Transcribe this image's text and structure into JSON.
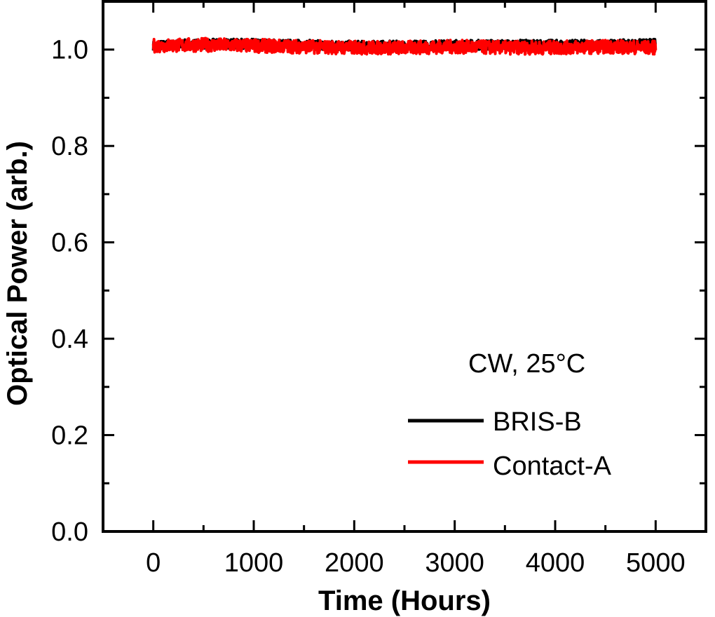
{
  "chart_data": {
    "type": "line",
    "xlabel": "Time (Hours)",
    "ylabel": "Optical Power (arb.)",
    "xlim": [
      -500,
      5500
    ],
    "ylim": [
      0.0,
      1.1
    ],
    "x_ticks": [
      0,
      1000,
      2000,
      3000,
      4000,
      5000
    ],
    "x_tick_labels": [
      "0",
      "1000",
      "2000",
      "3000",
      "4000",
      "5000"
    ],
    "y_ticks": [
      0.0,
      0.2,
      0.4,
      0.6,
      0.8,
      1.0
    ],
    "y_tick_labels": [
      "0.0",
      "0.2",
      "0.4",
      "0.6",
      "0.8",
      "1.0"
    ],
    "grid": false,
    "annotation": "CW, 25°C",
    "legend_position": "bottom-right",
    "series": [
      {
        "name": "BRIS-B",
        "color": "#000000",
        "x": [
          0,
          500,
          1000,
          1500,
          2000,
          2500,
          3000,
          3500,
          4000,
          4500,
          5000
        ],
        "y": [
          1.008,
          1.012,
          1.012,
          1.01,
          1.008,
          1.008,
          1.01,
          1.01,
          1.01,
          1.01,
          1.012
        ]
      },
      {
        "name": "Contact-A",
        "color": "#ff0000",
        "x": [
          0,
          500,
          1000,
          1500,
          2000,
          2500,
          3000,
          3500,
          4000,
          4500,
          5000
        ],
        "y": [
          1.008,
          1.01,
          1.008,
          1.006,
          1.004,
          1.004,
          1.006,
          1.004,
          1.004,
          1.006,
          1.004
        ]
      }
    ]
  }
}
